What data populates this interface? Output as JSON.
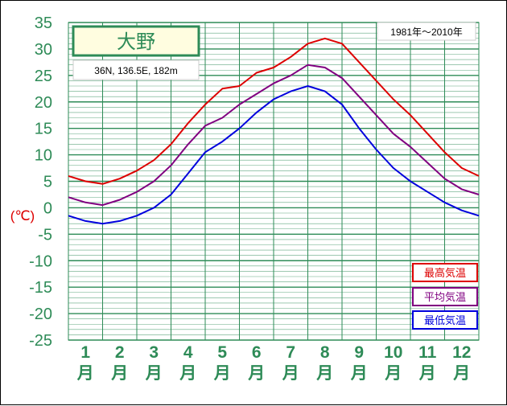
{
  "chart_data": {
    "type": "line",
    "title": "大野",
    "location": "36N,  136.5E,  182m",
    "period": "1981年～2010年",
    "ylabel": "(℃)",
    "ylim": [
      -25,
      35
    ],
    "yticks": [
      35,
      30,
      25,
      20,
      15,
      10,
      5,
      0,
      -5,
      -10,
      -15,
      -20,
      -25
    ],
    "month_labels": [
      "1",
      "2",
      "3",
      "4",
      "5",
      "6",
      "7",
      "8",
      "9",
      "10",
      "11",
      "12"
    ],
    "month_suffix": "月",
    "grid": true,
    "legend_position": "bottom-right",
    "x": [
      0,
      0.5,
      1,
      1.5,
      2,
      2.5,
      3,
      3.5,
      4,
      4.5,
      5,
      5.5,
      6,
      6.5,
      7,
      7.5,
      8,
      8.5,
      9,
      9.5,
      10,
      10.5,
      11,
      11.5,
      12
    ],
    "series": [
      {
        "name": "最高気温",
        "color": "#dd0000",
        "values": [
          6.0,
          5.0,
          4.5,
          5.5,
          7.0,
          9.0,
          12.0,
          16.0,
          19.5,
          22.5,
          23.0,
          25.5,
          26.5,
          28.5,
          31.0,
          32.0,
          31.0,
          27.5,
          24.0,
          20.5,
          17.5,
          14.0,
          10.5,
          7.5,
          6.0
        ]
      },
      {
        "name": "平均気温",
        "color": "#800080",
        "values": [
          2.0,
          1.0,
          0.5,
          1.5,
          3.0,
          5.0,
          8.0,
          12.0,
          15.5,
          17.0,
          19.5,
          21.5,
          23.5,
          25.0,
          27.0,
          26.5,
          24.5,
          21.0,
          17.5,
          14.0,
          11.5,
          8.5,
          5.5,
          3.5,
          2.5
        ]
      },
      {
        "name": "最低気温",
        "color": "#0000dd",
        "values": [
          -1.5,
          -2.5,
          -3.0,
          -2.5,
          -1.5,
          0.0,
          2.5,
          6.5,
          10.5,
          12.5,
          15.0,
          18.0,
          20.5,
          22.0,
          23.0,
          22.0,
          19.5,
          15.0,
          11.0,
          7.5,
          5.0,
          3.0,
          1.0,
          -0.5,
          -1.5
        ]
      }
    ]
  }
}
